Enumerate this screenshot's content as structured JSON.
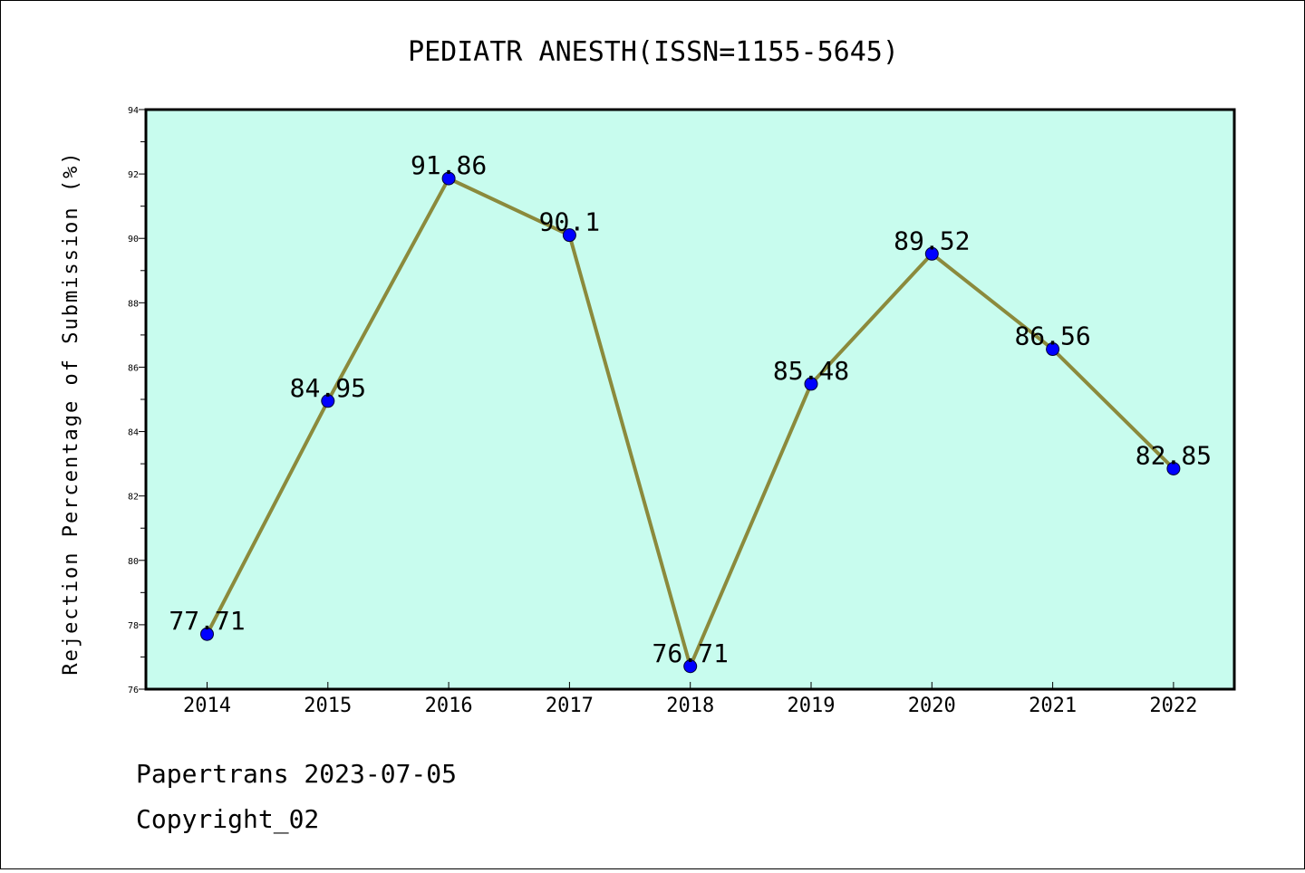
{
  "chart_data": {
    "type": "line",
    "title": "PEDIATR ANESTH(ISSN=1155-5645)",
    "xlabel": "",
    "ylabel": "Rejection Percentage of Submission (%)",
    "categories": [
      "2014",
      "2015",
      "2016",
      "2017",
      "2018",
      "2019",
      "2020",
      "2021",
      "2022"
    ],
    "values": [
      77.71,
      84.95,
      91.86,
      90.1,
      76.71,
      85.48,
      89.52,
      86.56,
      82.85
    ],
    "data_labels": [
      "77.71",
      "84.95",
      "91.86",
      "90.1",
      "76.71",
      "85.48",
      "89.52",
      "86.56",
      "82.85"
    ],
    "ylim": [
      76,
      94
    ],
    "yticks": [
      76,
      78,
      80,
      82,
      84,
      86,
      88,
      90,
      92,
      94
    ],
    "grid": false,
    "legend": "none",
    "colors": {
      "plot_background": "#c8fcee",
      "line": "#8b8a3c",
      "marker": "#0000ff"
    }
  },
  "footer": {
    "line1": "Papertrans 2023-07-05",
    "line2": "Copyright_02"
  }
}
